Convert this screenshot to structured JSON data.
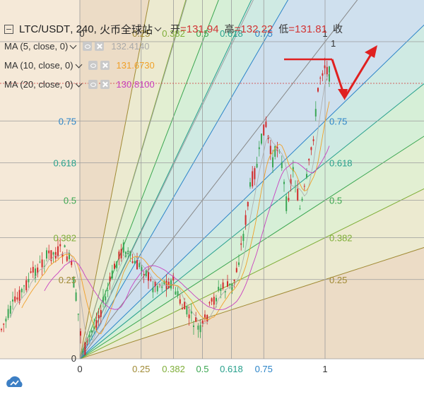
{
  "legend": {
    "symbol": "LTC/USDT",
    "interval": "240",
    "exchange": "火币全球站",
    "open_label": "开",
    "open_value": "131.94",
    "high_label": "高",
    "high_value": "132.22",
    "low_label": "低",
    "low_value": "131.81",
    "close_label": "收",
    "ma": [
      {
        "label": "MA (5, close, 0)",
        "value": "132.4140",
        "color": "#a9a9a9"
      },
      {
        "label": "MA (10, close, 0)",
        "value": "131.6730",
        "color": "#f0a028"
      },
      {
        "label": "MA (20, close, 0)",
        "value": "130.8100",
        "color": "#c842c0"
      }
    ]
  },
  "fan": {
    "ratios": [
      "0.25",
      "0.382",
      "0.5",
      "0.618",
      "0.75"
    ],
    "zero": "0",
    "one": "1",
    "colors": [
      "#a08a34",
      "#7fae38",
      "#3aa650",
      "#27a08c",
      "#2b84c8"
    ]
  },
  "chart_data": {
    "type": "candlestick",
    "overlay": "Fibonacci speed resistance fan",
    "fan_levels": [
      0,
      0.25,
      0.382,
      0.5,
      0.618,
      0.75,
      1
    ],
    "ohlc_last": {
      "open": 131.94,
      "high": 132.22,
      "low": 131.81
    },
    "moving_averages": [
      {
        "name": "MA (5, close, 0)",
        "value": 132.414
      },
      {
        "name": "MA (10, close, 0)",
        "value": 131.673
      },
      {
        "name": "MA (20, close, 0)",
        "value": 130.81
      }
    ]
  }
}
